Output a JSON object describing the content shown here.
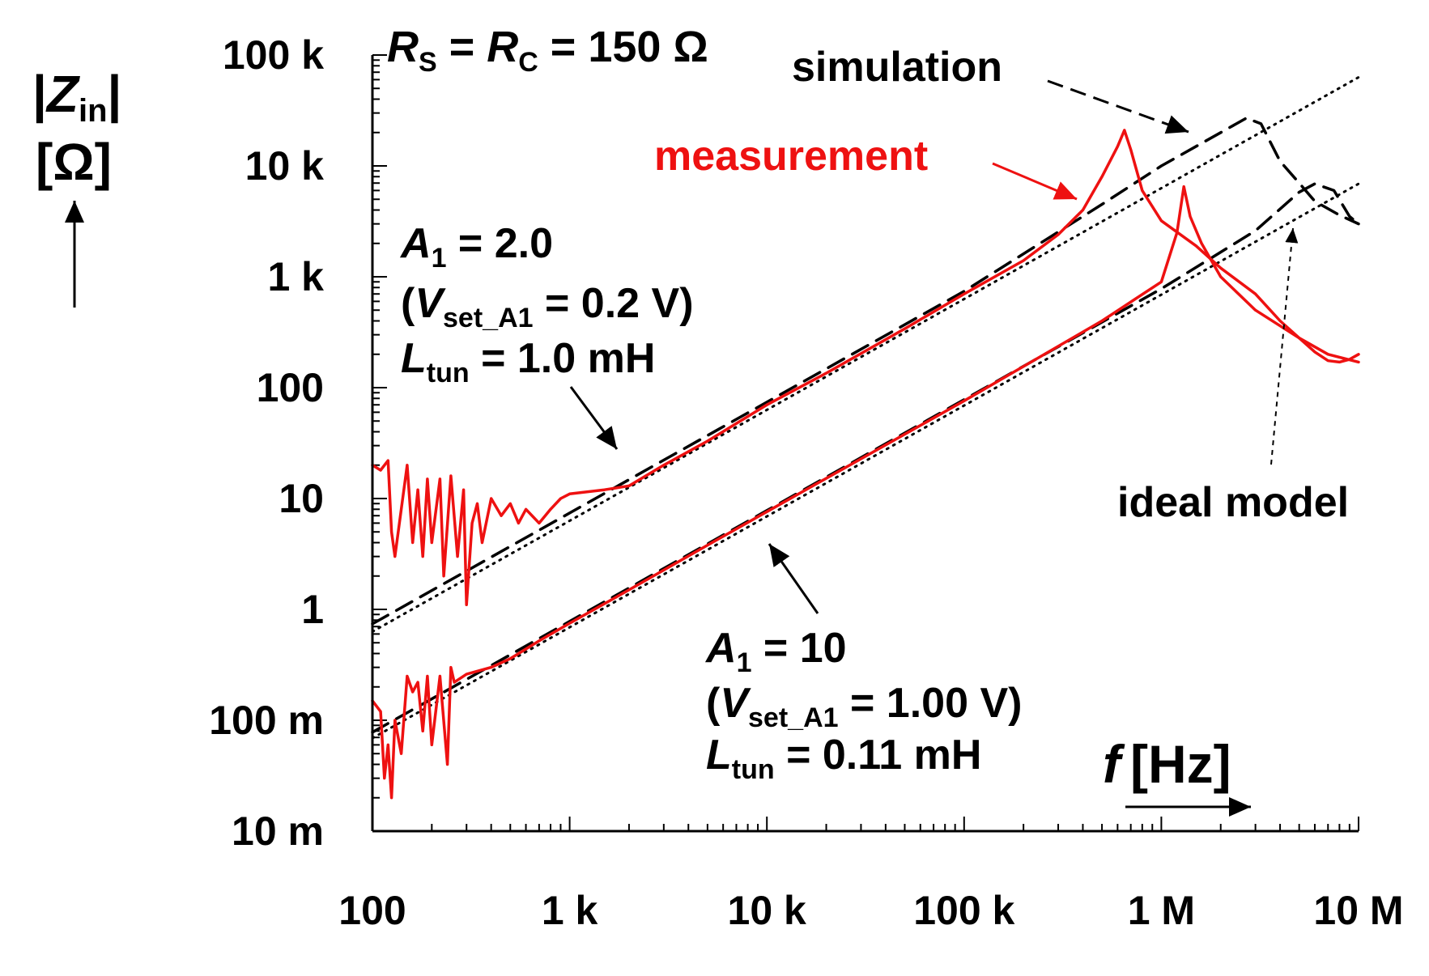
{
  "chart_data": {
    "type": "line",
    "x_scale": "log",
    "y_scale": "log",
    "xlim": [
      100,
      10000000
    ],
    "ylim": [
      0.01,
      100000
    ],
    "xlabel": {
      "symbol": "f",
      "unit": "[Hz]"
    },
    "ylabel": {
      "symbol": "Z",
      "subscript": "in",
      "unit": "[Ω]"
    },
    "x_ticks": [
      {
        "value": 100,
        "label": "100"
      },
      {
        "value": 1000,
        "label": "1 k"
      },
      {
        "value": 10000,
        "label": "10 k"
      },
      {
        "value": 100000,
        "label": "100 k"
      },
      {
        "value": 1000000,
        "label": "1 M"
      },
      {
        "value": 10000000,
        "label": "10 M"
      }
    ],
    "y_ticks": [
      {
        "value": 0.01,
        "label": "10 m"
      },
      {
        "value": 0.1,
        "label": "100 m"
      },
      {
        "value": 1,
        "label": "1"
      },
      {
        "value": 10,
        "label": "10"
      },
      {
        "value": 100,
        "label": "100"
      },
      {
        "value": 1000,
        "label": "1 k"
      },
      {
        "value": 10000,
        "label": "10 k"
      },
      {
        "value": 100000,
        "label": "100 k"
      }
    ],
    "header": {
      "r1": "R",
      "r1_sub": "S",
      "eq1": " = ",
      "r2": "R",
      "r2_sub": "C",
      "eq2": " = 150 Ω"
    },
    "legend": {
      "simulation": "simulation",
      "measurement": "measurement",
      "ideal": "ideal model"
    },
    "case1": {
      "a_sym": "A",
      "a_sub": "1",
      "a_val": " = 2.0",
      "v_open": "(",
      "v_sym": "V",
      "v_sub": "set_A1",
      "v_val": " =  0.2 V)",
      "l_sym": "L",
      "l_sub": "tun",
      "l_val": " = 1.0 mH"
    },
    "case2": {
      "a_sym": "A",
      "a_sub": "1",
      "a_val": " = 10",
      "v_open": "(",
      "v_sym": "V",
      "v_sub": "set_A1",
      "v_val": " =  1.00 V)",
      "l_sym": "L",
      "l_sub": "tun",
      "l_val": " = 0.11 mH"
    },
    "series": [
      {
        "name": "ideal model (A1 = 2.0)",
        "style": "dotted",
        "color": "#000000",
        "points": [
          [
            100,
            0.63
          ],
          [
            10000000,
            63000
          ]
        ]
      },
      {
        "name": "ideal model (A1 = 10)",
        "style": "dotted",
        "color": "#000000",
        "points": [
          [
            100,
            0.069
          ],
          [
            10000000,
            6900
          ]
        ]
      },
      {
        "name": "simulation (A1 = 2.0)",
        "style": "dashed",
        "color": "#000000",
        "points": [
          [
            100,
            0.74
          ],
          [
            1000,
            7.4
          ],
          [
            10000,
            74
          ],
          [
            100000,
            740
          ],
          [
            500000,
            4500
          ],
          [
            1000000,
            10000
          ],
          [
            2000000,
            20000
          ],
          [
            2700000,
            27000
          ],
          [
            3200000,
            24000
          ],
          [
            4000000,
            11000
          ],
          [
            5000000,
            7000
          ],
          [
            6000000,
            4800
          ],
          [
            8000000,
            3600
          ],
          [
            10000000,
            3000
          ]
        ]
      },
      {
        "name": "simulation (A1 = 10)",
        "style": "dashed",
        "color": "#000000",
        "points": [
          [
            100,
            0.078
          ],
          [
            1000,
            0.78
          ],
          [
            10000,
            7.8
          ],
          [
            100000,
            78
          ],
          [
            1000000,
            780
          ],
          [
            3000000,
            2600
          ],
          [
            5000000,
            5800
          ],
          [
            6000000,
            6900
          ],
          [
            7500000,
            6000
          ],
          [
            9000000,
            3500
          ],
          [
            10000000,
            3000
          ]
        ]
      },
      {
        "name": "measurement (A1 = 2.0)",
        "style": "solid",
        "color": "#ee1111",
        "points": [
          [
            100,
            20
          ],
          [
            110,
            18
          ],
          [
            120,
            22
          ],
          [
            125,
            5
          ],
          [
            130,
            3
          ],
          [
            140,
            8
          ],
          [
            150,
            20
          ],
          [
            160,
            4
          ],
          [
            170,
            12
          ],
          [
            180,
            3
          ],
          [
            190,
            15
          ],
          [
            200,
            4
          ],
          [
            220,
            15
          ],
          [
            230,
            2
          ],
          [
            250,
            16
          ],
          [
            270,
            3
          ],
          [
            290,
            12
          ],
          [
            300,
            1.1
          ],
          [
            320,
            6
          ],
          [
            340,
            9
          ],
          [
            360,
            4
          ],
          [
            400,
            10
          ],
          [
            450,
            7
          ],
          [
            500,
            9
          ],
          [
            550,
            6
          ],
          [
            600,
            8
          ],
          [
            700,
            6
          ],
          [
            800,
            8
          ],
          [
            900,
            10
          ],
          [
            1000,
            11
          ],
          [
            1500,
            12
          ],
          [
            2000,
            13
          ],
          [
            3000,
            20
          ],
          [
            5000,
            33
          ],
          [
            10000,
            70
          ],
          [
            20000,
            135
          ],
          [
            50000,
            340
          ],
          [
            100000,
            700
          ],
          [
            200000,
            1400
          ],
          [
            300000,
            2400
          ],
          [
            400000,
            4000
          ],
          [
            500000,
            8000
          ],
          [
            600000,
            15000
          ],
          [
            650000,
            21000
          ],
          [
            700000,
            14000
          ],
          [
            800000,
            6000
          ],
          [
            1000000,
            3200
          ],
          [
            1500000,
            1900
          ],
          [
            2000000,
            1200
          ],
          [
            3000000,
            700
          ],
          [
            4000000,
            400
          ],
          [
            5000000,
            280
          ],
          [
            6000000,
            210
          ],
          [
            7000000,
            175
          ],
          [
            8000000,
            170
          ],
          [
            9000000,
            180
          ],
          [
            10000000,
            200
          ]
        ]
      },
      {
        "name": "measurement (A1 = 10)",
        "style": "solid",
        "color": "#ee1111",
        "points": [
          [
            100,
            0.15
          ],
          [
            110,
            0.12
          ],
          [
            115,
            0.03
          ],
          [
            120,
            0.06
          ],
          [
            125,
            0.02
          ],
          [
            130,
            0.1
          ],
          [
            140,
            0.05
          ],
          [
            150,
            0.25
          ],
          [
            160,
            0.18
          ],
          [
            170,
            0.22
          ],
          [
            180,
            0.08
          ],
          [
            190,
            0.25
          ],
          [
            200,
            0.06
          ],
          [
            220,
            0.25
          ],
          [
            240,
            0.04
          ],
          [
            250,
            0.3
          ],
          [
            260,
            0.22
          ],
          [
            300,
            0.26
          ],
          [
            400,
            0.3
          ],
          [
            500,
            0.36
          ],
          [
            700,
            0.52
          ],
          [
            1000,
            0.75
          ],
          [
            2000,
            1.5
          ],
          [
            5000,
            3.8
          ],
          [
            10000,
            7.6
          ],
          [
            100000,
            76
          ],
          [
            500000,
            400
          ],
          [
            1000000,
            900
          ],
          [
            1200000,
            2500
          ],
          [
            1300000,
            6500
          ],
          [
            1400000,
            3500
          ],
          [
            1600000,
            2000
          ],
          [
            2000000,
            1000
          ],
          [
            3000000,
            500
          ],
          [
            5000000,
            280
          ],
          [
            7000000,
            200
          ],
          [
            10000000,
            170
          ]
        ]
      }
    ]
  }
}
